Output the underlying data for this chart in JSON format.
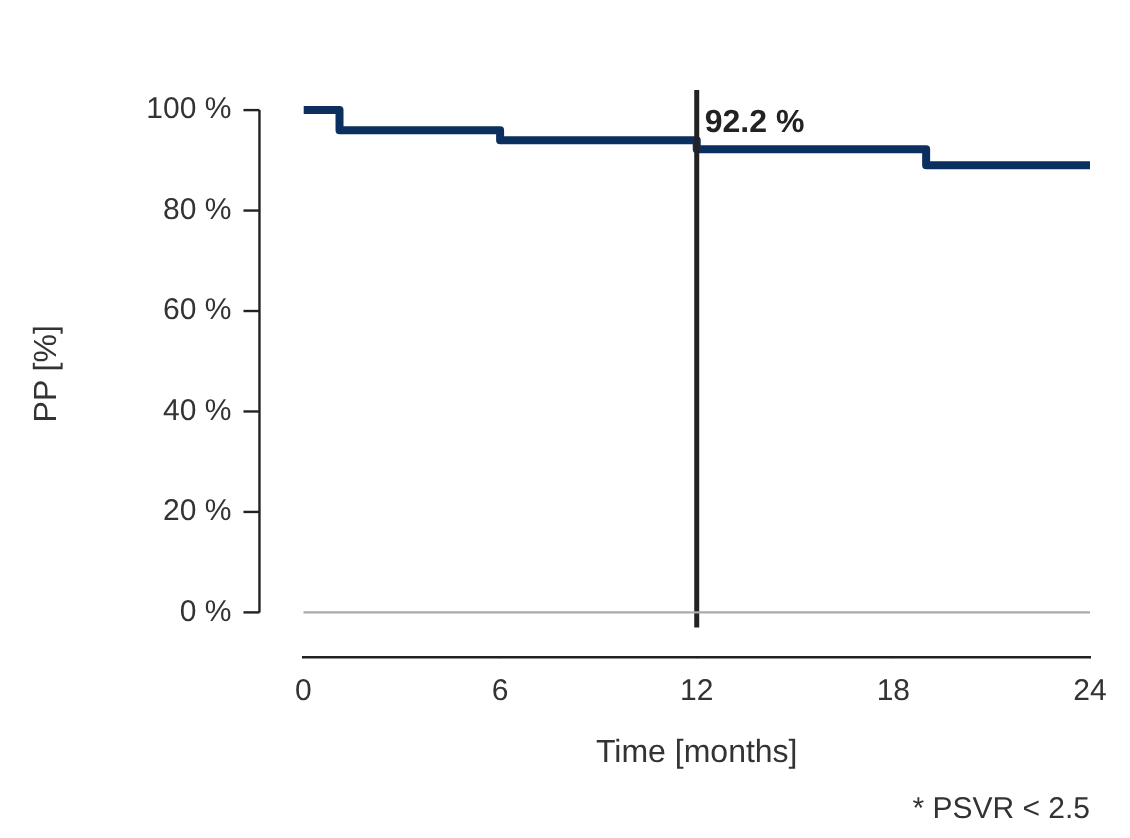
{
  "chart_data": {
    "type": "step",
    "xlabel": "Time [months]",
    "ylabel": "PP [%]",
    "x": [
      0,
      1.1,
      6,
      12,
      19,
      24
    ],
    "series": [
      {
        "color": "#0b2f5e",
        "values": [
          100,
          96,
          94,
          92.2,
          89,
          89
        ]
      }
    ],
    "xlim": [
      0,
      24
    ],
    "xticks": [
      0,
      6,
      12,
      18,
      24
    ],
    "ylim": [
      -9,
      104
    ],
    "yticks": [
      {
        "value": 0,
        "label": "0 %"
      },
      {
        "value": 20,
        "label": "20 %"
      },
      {
        "value": 40,
        "label": "40 %"
      },
      {
        "value": 60,
        "label": "60 %"
      },
      {
        "value": 80,
        "label": "80 %"
      },
      {
        "value": 100,
        "label": "100 %"
      }
    ],
    "ref_lines": [
      {
        "axis": "x",
        "value": 12,
        "color": "#222222"
      },
      {
        "axis": "y",
        "value": 0,
        "color": "#aaaaaa"
      }
    ],
    "annotations": [
      {
        "text": "92.2 %",
        "x": 12,
        "y": 92.2
      },
      "* PSVR < 2.5"
    ],
    "grid": false,
    "legend": false
  }
}
